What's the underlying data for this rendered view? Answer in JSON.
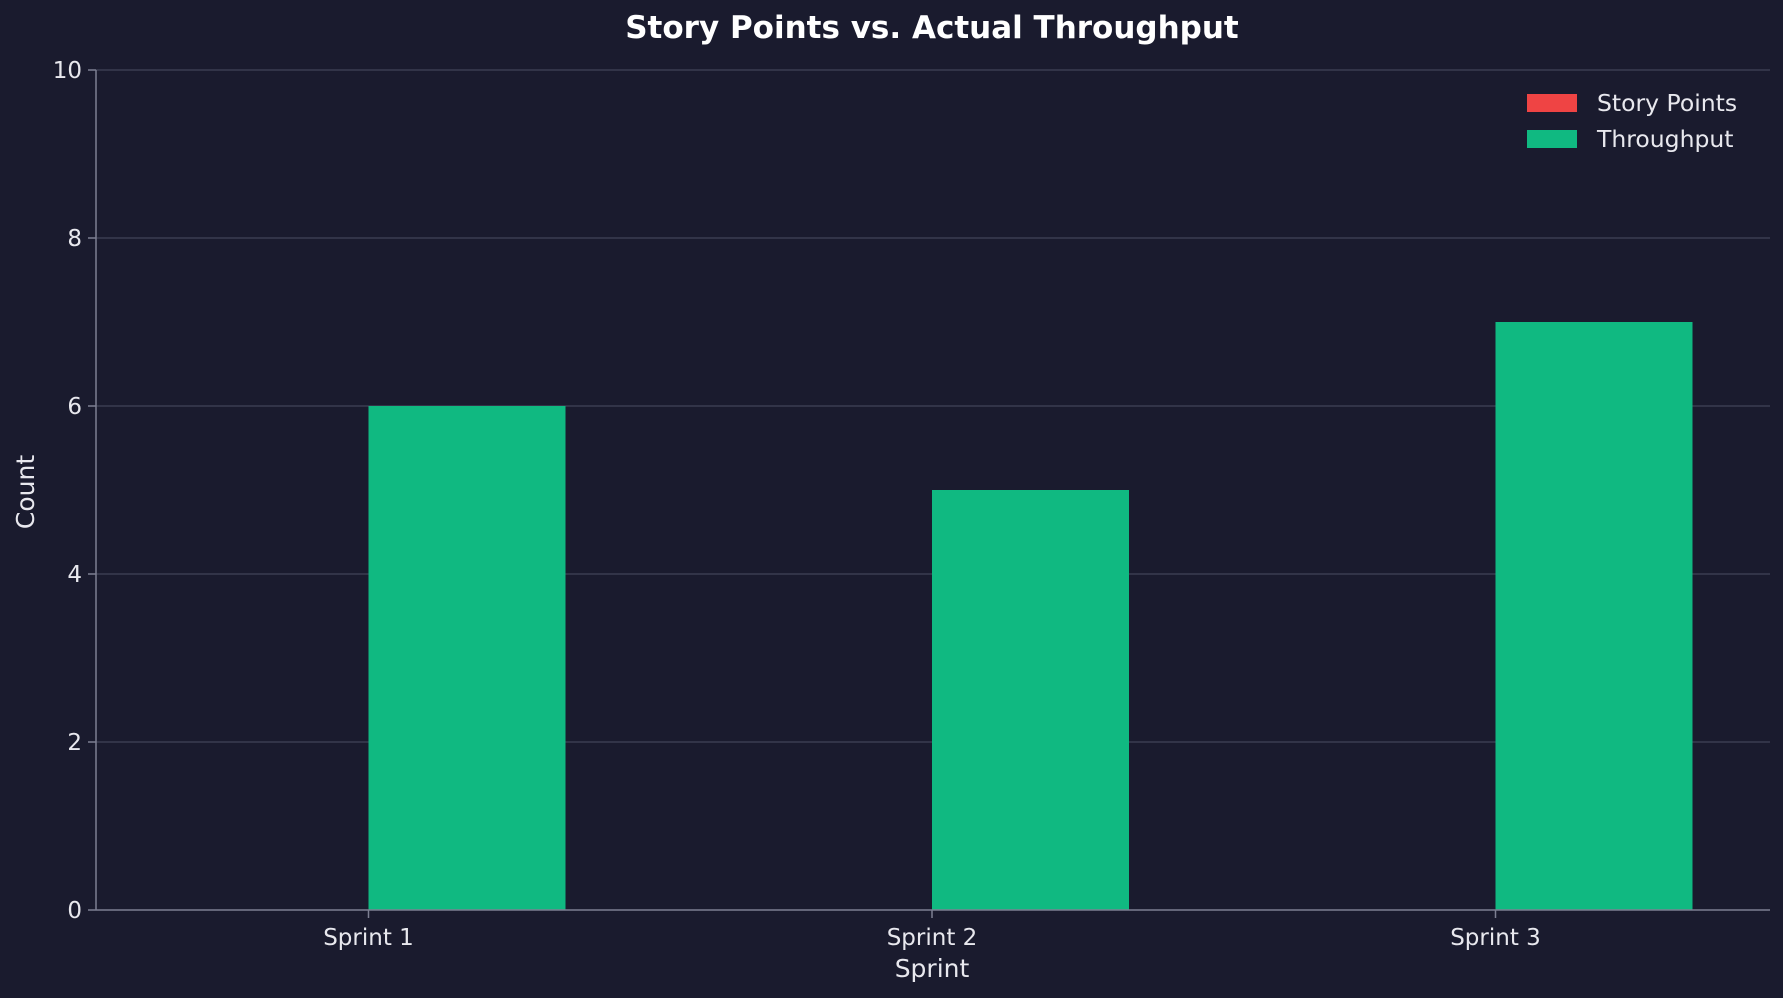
{
  "chart_data": {
    "type": "bar",
    "title": "Story Points vs. Actual Throughput",
    "xlabel": "Sprint",
    "ylabel": "Count",
    "categories": [
      "Sprint 1",
      "Sprint 2",
      "Sprint 3"
    ],
    "series": [
      {
        "name": "Story Points",
        "color": "#ef4444",
        "values": [
          0,
          0,
          0
        ]
      },
      {
        "name": "Throughput",
        "color": "#10b981",
        "values": [
          6,
          5,
          7
        ]
      }
    ],
    "ylim": [
      0,
      10
    ],
    "yticks": [
      0,
      2,
      4,
      6,
      8,
      10
    ],
    "grid": "horizontal",
    "legend_position": "top-right"
  }
}
